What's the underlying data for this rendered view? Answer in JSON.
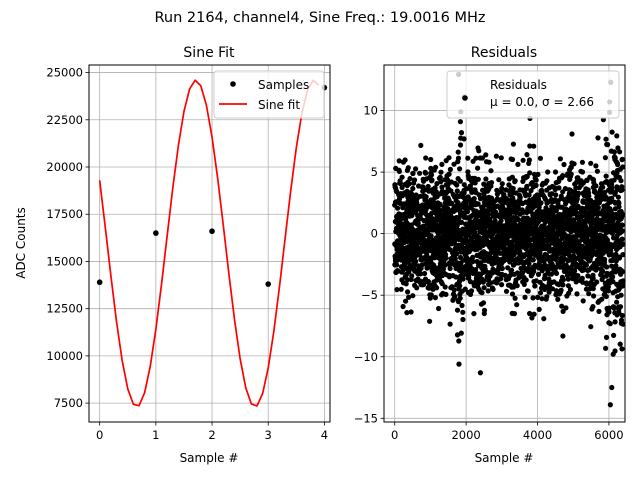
{
  "suptitle": "Run 2164, channel4, Sine Freq.: 19.0016 MHz",
  "colors": {
    "fit": "#ff0000",
    "samples": "#000000",
    "grid": "#b0b0b0",
    "axes": "#000000"
  },
  "chart_data": [
    {
      "type": "line",
      "title": "Sine Fit",
      "xlabel": "Sample #",
      "ylabel": "ADC Counts",
      "xlim": [
        -0.19,
        4.1
      ],
      "ylim": [
        6500,
        25400
      ],
      "xticks": [
        0,
        1,
        2,
        3,
        4
      ],
      "yticks": [
        7500,
        10000,
        12500,
        15000,
        17500,
        20000,
        22500,
        25000
      ],
      "ytick_labels": [
        "7500",
        "10000",
        "12500",
        "15000",
        "17500",
        "20000",
        "22500",
        "25000"
      ],
      "grid": true,
      "legend": {
        "placement": "top-right",
        "entries": [
          "Samples",
          "Sine fit"
        ]
      },
      "series": [
        {
          "name": "Samples",
          "kind": "markers",
          "x": [
            0,
            1,
            2,
            3,
            4
          ],
          "y": [
            13900,
            16500,
            16600,
            13800,
            24200
          ]
        },
        {
          "name": "Sine fit",
          "kind": "line",
          "model": {
            "mean": 15950,
            "amplitude": 8650,
            "period": 2.105,
            "phase_rad": 2.745
          },
          "x_start": 0,
          "x_end": 3.9,
          "x_step": 0.1
        }
      ]
    },
    {
      "type": "scatter",
      "title": "Residuals",
      "xlabel": "Sample #",
      "ylabel": "",
      "xlim": [
        -300,
        6450
      ],
      "ylim": [
        -15.3,
        13.7
      ],
      "xticks": [
        0,
        2000,
        4000,
        6000
      ],
      "yticks": [
        -15,
        -10,
        -5,
        0,
        5,
        10
      ],
      "grid": true,
      "legend": {
        "placement": "top-right",
        "entries": [
          "Residuals",
          "μ = 0.0, σ = 2.66"
        ]
      },
      "stats": {
        "mean": 0.0,
        "sigma": 2.66,
        "n_points": 6400
      },
      "outliers": [
        {
          "x": 6040,
          "y": -13.9
        },
        {
          "x": 2400,
          "y": -11.3
        },
        {
          "x": 1800,
          "y": -10.6
        },
        {
          "x": 6050,
          "y": 12.3
        },
        {
          "x": 1950,
          "y": 11.1
        },
        {
          "x": 6020,
          "y": 10.7
        },
        {
          "x": 1850,
          "y": 9.9
        },
        {
          "x": 6080,
          "y": -12.5
        }
      ]
    }
  ]
}
